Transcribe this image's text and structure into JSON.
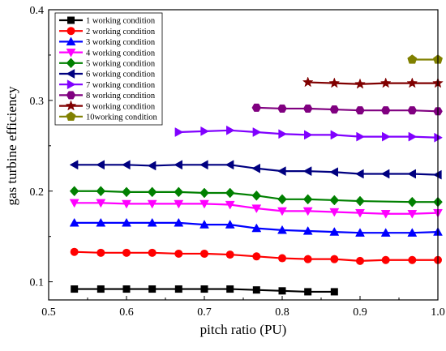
{
  "chart_data": {
    "type": "line",
    "xlabel": "pitch ratio (PU)",
    "ylabel": "gas turbine efficiency",
    "xlim": [
      0.5,
      1.0
    ],
    "ylim": [
      0.08,
      0.4
    ],
    "xticks": [
      0.5,
      0.6,
      0.7,
      0.8,
      0.9,
      1.0
    ],
    "xtick_labels": [
      "0.5",
      "0.6",
      "0.7",
      "0.8",
      "0.9",
      "1.0"
    ],
    "yticks": [
      0.1,
      0.2,
      0.3,
      0.4
    ],
    "ytick_labels": [
      "0.1",
      "0.2",
      "0.3",
      "0.4"
    ],
    "legend_position": "top-left",
    "series": [
      {
        "name": "1 working condition",
        "color": "#000000",
        "marker": "square",
        "x": [
          0.533,
          0.567,
          0.6,
          0.633,
          0.667,
          0.7,
          0.733,
          0.767,
          0.8,
          0.833,
          0.867
        ],
        "y": [
          0.092,
          0.092,
          0.092,
          0.092,
          0.092,
          0.092,
          0.092,
          0.091,
          0.09,
          0.089,
          0.089
        ]
      },
      {
        "name": "2 working condition",
        "color": "#ff0000",
        "marker": "circle",
        "x": [
          0.533,
          0.567,
          0.6,
          0.633,
          0.667,
          0.7,
          0.733,
          0.767,
          0.8,
          0.833,
          0.867,
          0.9,
          0.933,
          0.967,
          1.0
        ],
        "y": [
          0.133,
          0.132,
          0.132,
          0.132,
          0.131,
          0.131,
          0.13,
          0.128,
          0.126,
          0.125,
          0.125,
          0.123,
          0.124,
          0.124,
          0.124
        ]
      },
      {
        "name": "3 working condition",
        "color": "#0000ff",
        "marker": "triangle-up",
        "x": [
          0.533,
          0.567,
          0.6,
          0.633,
          0.667,
          0.7,
          0.733,
          0.767,
          0.8,
          0.833,
          0.867,
          0.9,
          0.933,
          0.967,
          1.0
        ],
        "y": [
          0.165,
          0.165,
          0.165,
          0.165,
          0.165,
          0.163,
          0.163,
          0.159,
          0.157,
          0.156,
          0.155,
          0.154,
          0.154,
          0.154,
          0.155
        ]
      },
      {
        "name": "4 working condition",
        "color": "#ff00ff",
        "marker": "triangle-down",
        "x": [
          0.533,
          0.567,
          0.6,
          0.633,
          0.667,
          0.7,
          0.733,
          0.767,
          0.8,
          0.833,
          0.867,
          0.9,
          0.933,
          0.967,
          1.0
        ],
        "y": [
          0.187,
          0.187,
          0.186,
          0.186,
          0.186,
          0.186,
          0.185,
          0.181,
          0.178,
          0.178,
          0.177,
          0.176,
          0.175,
          0.175,
          0.176
        ]
      },
      {
        "name": "5 working condition",
        "color": "#008000",
        "marker": "diamond",
        "x": [
          0.533,
          0.567,
          0.6,
          0.633,
          0.667,
          0.7,
          0.733,
          0.767,
          0.8,
          0.833,
          0.867,
          0.9,
          0.967,
          1.0
        ],
        "y": [
          0.2,
          0.2,
          0.199,
          0.199,
          0.199,
          0.198,
          0.198,
          0.195,
          0.191,
          0.191,
          0.19,
          0.189,
          0.188,
          0.188
        ]
      },
      {
        "name": "6 working condition",
        "color": "#000080",
        "marker": "triangle-left",
        "x": [
          0.533,
          0.567,
          0.6,
          0.633,
          0.667,
          0.7,
          0.733,
          0.767,
          0.8,
          0.833,
          0.867,
          0.9,
          0.933,
          0.967,
          1.0
        ],
        "y": [
          0.229,
          0.229,
          0.229,
          0.228,
          0.229,
          0.229,
          0.229,
          0.225,
          0.222,
          0.222,
          0.221,
          0.219,
          0.219,
          0.219,
          0.218
        ]
      },
      {
        "name": "7 working condition",
        "color": "#8000ff",
        "marker": "triangle-right",
        "x": [
          0.667,
          0.7,
          0.733,
          0.767,
          0.8,
          0.833,
          0.867,
          0.9,
          0.933,
          0.967,
          1.0
        ],
        "y": [
          0.265,
          0.266,
          0.267,
          0.265,
          0.263,
          0.262,
          0.262,
          0.26,
          0.26,
          0.26,
          0.259
        ]
      },
      {
        "name": "8 working condition",
        "color": "#800080",
        "marker": "hexagon",
        "x": [
          0.767,
          0.8,
          0.833,
          0.867,
          0.9,
          0.933,
          0.967,
          1.0
        ],
        "y": [
          0.292,
          0.291,
          0.291,
          0.29,
          0.289,
          0.289,
          0.289,
          0.288
        ]
      },
      {
        "name": "9 working condition",
        "color": "#800000",
        "marker": "star",
        "x": [
          0.833,
          0.867,
          0.9,
          0.933,
          0.967,
          1.0
        ],
        "y": [
          0.32,
          0.319,
          0.318,
          0.319,
          0.319,
          0.319
        ]
      },
      {
        "name": "10working condition",
        "color": "#808000",
        "marker": "pentagon",
        "x": [
          0.967,
          1.0
        ],
        "y": [
          0.345,
          0.345
        ]
      }
    ]
  }
}
